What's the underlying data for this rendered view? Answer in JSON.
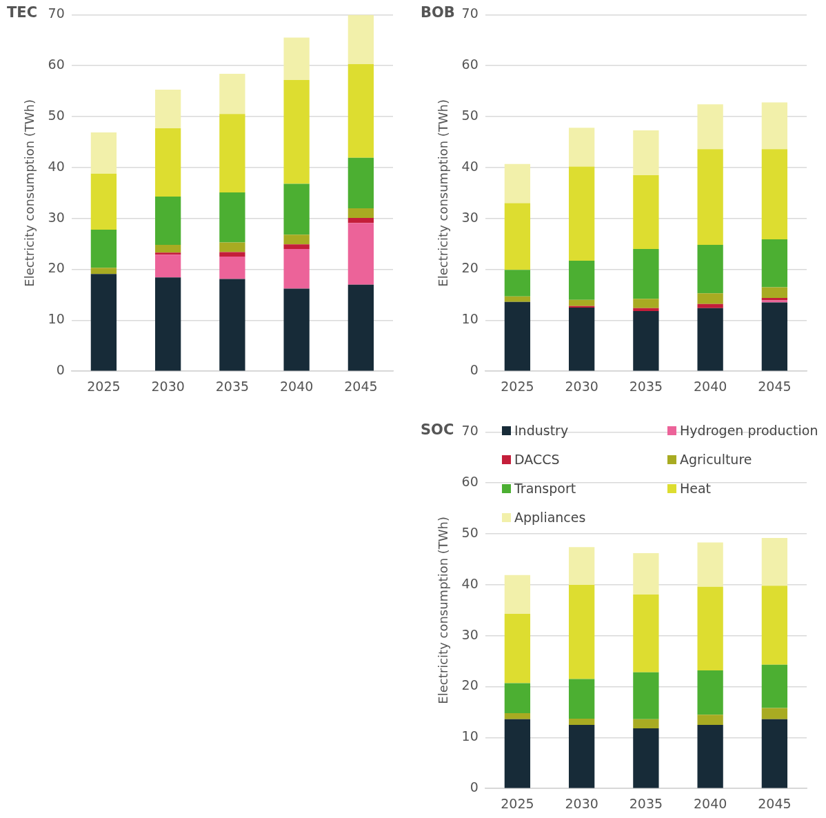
{
  "chart_data": [
    {
      "type": "bar",
      "title": "TEC",
      "ylabel": "Electricity consumption (TWh)",
      "categories": [
        "2025",
        "2030",
        "2035",
        "2040",
        "2045"
      ],
      "stacked": true,
      "ylim": [
        0,
        70
      ],
      "yticks": [
        0,
        10,
        20,
        30,
        40,
        50,
        60,
        70
      ],
      "grid": "y",
      "legend": false,
      "series": [
        {
          "color": "#172b38",
          "values": [
            19.1,
            18.4,
            18.1,
            16.2,
            17.0
          ]
        },
        {
          "color": "#ec6399",
          "values": [
            0,
            4.5,
            4.4,
            7.8,
            12.1
          ]
        },
        {
          "color": "#c41e3a",
          "values": [
            0,
            0.4,
            0.9,
            0.9,
            1.0
          ]
        },
        {
          "color": "#a8ab22",
          "values": [
            1.2,
            1.5,
            1.9,
            1.9,
            1.9
          ]
        },
        {
          "color": "#4caf32",
          "values": [
            7.5,
            9.5,
            9.8,
            10.0,
            9.9
          ]
        },
        {
          "color": "#dddd30",
          "values": [
            11.0,
            13.4,
            15.4,
            20.4,
            18.4
          ]
        },
        {
          "color": "#f2f0aa",
          "values": [
            8.1,
            7.6,
            7.9,
            8.3,
            9.7
          ]
        }
      ]
    },
    {
      "type": "bar",
      "title": "BOB",
      "ylabel": "Electricity consumption (TWh)",
      "categories": [
        "2025",
        "2030",
        "2035",
        "2040",
        "2045"
      ],
      "stacked": true,
      "ylim": [
        0,
        70
      ],
      "yticks": [
        0,
        10,
        20,
        30,
        40,
        50,
        60,
        70
      ],
      "grid": "y",
      "legend": false,
      "series": [
        {
          "color": "#172b38",
          "values": [
            13.6,
            12.5,
            11.8,
            12.4,
            13.5
          ]
        },
        {
          "color": "#ec6399",
          "values": [
            0,
            0,
            0,
            0,
            0.4
          ]
        },
        {
          "color": "#c41e3a",
          "values": [
            0,
            0.3,
            0.6,
            0.8,
            0.5
          ]
        },
        {
          "color": "#a8ab22",
          "values": [
            1.1,
            1.2,
            1.8,
            2.1,
            2.1
          ]
        },
        {
          "color": "#4caf32",
          "values": [
            5.2,
            7.7,
            9.8,
            9.5,
            9.4
          ]
        },
        {
          "color": "#dddd30",
          "values": [
            13.1,
            18.5,
            14.5,
            18.8,
            17.7
          ]
        },
        {
          "color": "#f2f0aa",
          "values": [
            7.7,
            7.6,
            8.8,
            8.8,
            9.2
          ]
        }
      ]
    },
    {
      "type": "bar",
      "title": "SOC",
      "ylabel": "Electricity consumption (TWh)",
      "categories": [
        "2025",
        "2030",
        "2035",
        "2040",
        "2045"
      ],
      "stacked": true,
      "ylim": [
        0,
        70
      ],
      "yticks": [
        0,
        10,
        20,
        30,
        40,
        50,
        60,
        70
      ],
      "grid": "y",
      "legend": "top",
      "series": [
        {
          "name": "Industry",
          "color": "#172b38",
          "values": [
            13.6,
            12.5,
            11.8,
            12.5,
            13.6
          ]
        },
        {
          "name": "Hydrogen production",
          "color": "#ec6399",
          "values": [
            0,
            0,
            0,
            0,
            0
          ]
        },
        {
          "name": "DACCS",
          "color": "#c41e3a",
          "values": [
            0,
            0,
            0,
            0,
            0
          ]
        },
        {
          "name": "Agriculture",
          "color": "#a8ab22",
          "values": [
            1.2,
            1.2,
            1.8,
            2.0,
            2.2
          ]
        },
        {
          "name": "Transport",
          "color": "#4caf32",
          "values": [
            5.9,
            7.8,
            9.2,
            8.7,
            8.5
          ]
        },
        {
          "name": "Heat",
          "color": "#dddd30",
          "values": [
            13.6,
            18.5,
            15.3,
            16.4,
            15.5
          ]
        },
        {
          "name": "Appliances",
          "color": "#f2f0aa",
          "values": [
            7.6,
            7.4,
            8.1,
            8.7,
            9.4
          ]
        }
      ]
    }
  ]
}
